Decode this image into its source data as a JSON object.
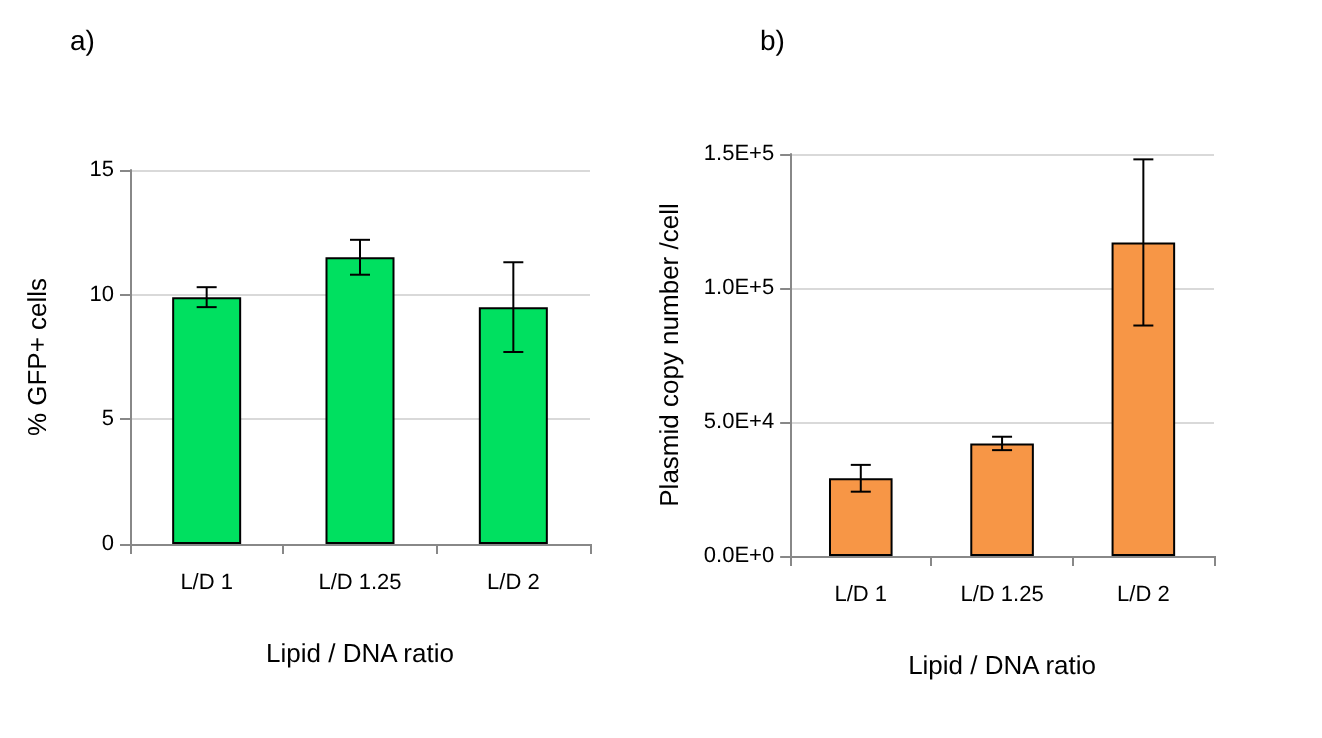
{
  "chart_data": [
    {
      "type": "bar",
      "title": "a)",
      "xlabel": "Lipid / DNA ratio",
      "ylabel": "% GFP+ cells",
      "categories": [
        "L/D 1",
        "L/D 1.25",
        "L/D 2"
      ],
      "values": [
        9.9,
        11.5,
        9.5
      ],
      "errors": [
        0.4,
        0.7,
        1.8
      ],
      "color": "#00e060",
      "ylim": [
        0,
        15
      ],
      "yticks": [
        0,
        5,
        10,
        15
      ],
      "grid": "y"
    },
    {
      "type": "bar",
      "title": "b)",
      "xlabel": "Lipid / DNA ratio",
      "ylabel": "Plasmid copy number /cell",
      "categories": [
        "L/D 1",
        "L/D 1.25",
        "L/D 2"
      ],
      "values": [
        29000,
        42000,
        117000
      ],
      "errors": [
        5000,
        2500,
        31000
      ],
      "color": "#f79646",
      "ylim": [
        0,
        150000
      ],
      "yticks": [
        {
          "value": 0,
          "label": "0.0E+0"
        },
        {
          "value": 50000,
          "label": "5.0E+4"
        },
        {
          "value": 100000,
          "label": "1.0E+5"
        },
        {
          "value": 150000,
          "label": "1.5E+5"
        }
      ],
      "grid": "y"
    }
  ]
}
